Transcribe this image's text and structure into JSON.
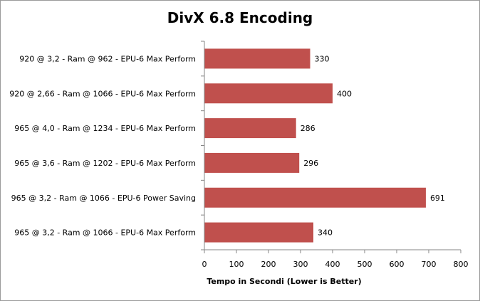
{
  "chart_data": {
    "type": "bar",
    "orientation": "horizontal",
    "title": "DivX 6.8 Encoding",
    "xlabel": "Tempo in Secondi (Lower is Better)",
    "ylabel": "",
    "xlim": [
      0,
      800
    ],
    "xticks": [
      0,
      100,
      200,
      300,
      400,
      500,
      600,
      700,
      800
    ],
    "categories": [
      "920 @ 3,2 - Ram @ 962 - EPU-6 Max Perform",
      "920 @ 2,66 - Ram @ 1066 - EPU-6 Max Perform",
      "965 @ 4,0 - Ram @ 1234 - EPU-6 Max Perform",
      "965 @ 3,6 - Ram @ 1202 - EPU-6 Max Perform",
      "965 @ 3,2 - Ram @ 1066 - EPU-6 Power Saving",
      "965 @ 3,2 - Ram @ 1066 - EPU-6 Max Perform"
    ],
    "values": [
      330,
      400,
      286,
      296,
      691,
      340
    ],
    "bar_color": "#c0504d",
    "grid": false,
    "legend": "none"
  }
}
